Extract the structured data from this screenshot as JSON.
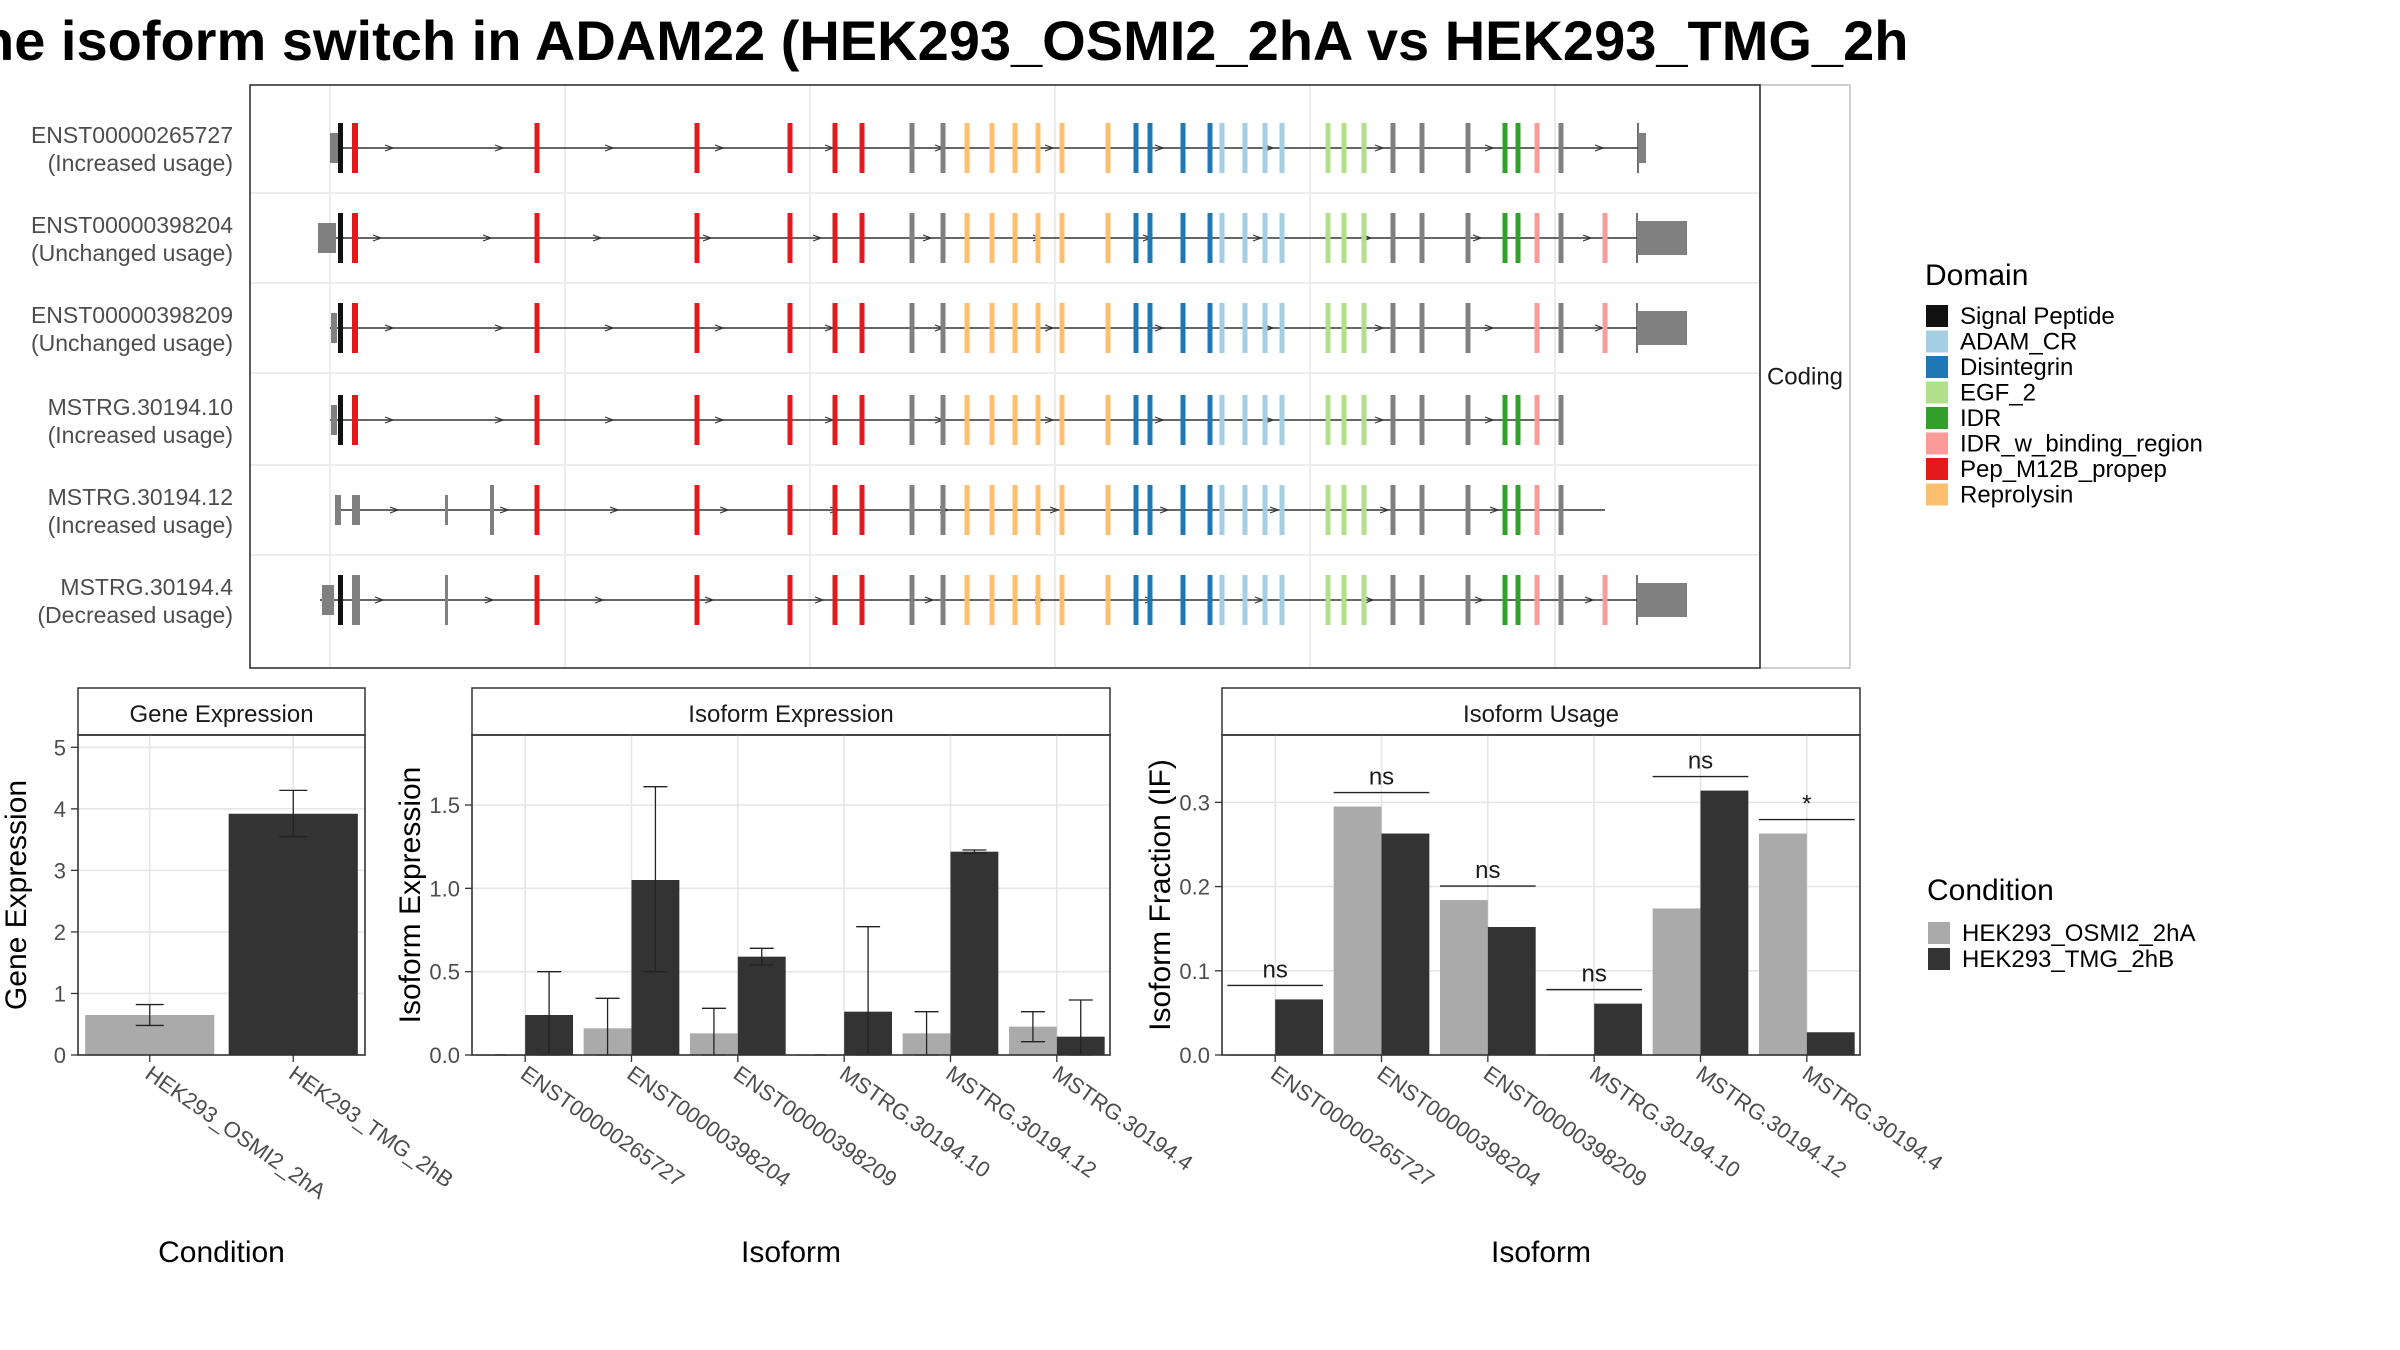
{
  "title": "he isoform switch in ADAM22 (HEK293_OSMI2_2hA vs HEK293_TMG_2h",
  "structure": {
    "facet_label": "Coding",
    "isoforms": [
      {
        "id": "ENST00000265727",
        "usage": "(Increased usage)"
      },
      {
        "id": "ENST00000398204",
        "usage": "(Unchanged usage)"
      },
      {
        "id": "ENST00000398209",
        "usage": "(Unchanged usage)"
      },
      {
        "id": "MSTRG.30194.10",
        "usage": "(Increased usage)"
      },
      {
        "id": "MSTRG.30194.12",
        "usage": "(Increased usage)"
      },
      {
        "id": "MSTRG.30194.4",
        "usage": "(Decreased usage)"
      }
    ]
  },
  "legend_domain": {
    "title": "Domain",
    "items": [
      {
        "label": "Signal Peptide",
        "color": "#111111"
      },
      {
        "label": "ADAM_CR",
        "color": "#a6cee3"
      },
      {
        "label": "Disintegrin",
        "color": "#1f78b4"
      },
      {
        "label": "EGF_2",
        "color": "#b2df8a"
      },
      {
        "label": "IDR",
        "color": "#33a02c"
      },
      {
        "label": "IDR_w_binding_region",
        "color": "#fb9a99"
      },
      {
        "label": "Pep_M12B_propep",
        "color": "#e31a1c"
      },
      {
        "label": "Reprolysin",
        "color": "#fdbf6f"
      }
    ]
  },
  "legend_condition": {
    "title": "Condition",
    "items": [
      {
        "label": "HEK293_OSMI2_2hA",
        "color": "#aaaaaa"
      },
      {
        "label": "HEK293_TMG_2hB",
        "color": "#333333"
      }
    ]
  },
  "chart_data": [
    {
      "type": "bar",
      "title": "Gene Expression",
      "xlabel": "Condition",
      "ylabel": "Gene Expression",
      "ylim": [
        0,
        5.2
      ],
      "yticks": [
        0,
        1,
        2,
        3,
        4,
        5
      ],
      "categories": [
        "HEK293_OSMI2_2hA",
        "HEK293_TMG_2hB"
      ],
      "values": [
        0.65,
        3.92
      ],
      "errors": [
        [
          0.48,
          0.82
        ],
        [
          3.55,
          4.3
        ]
      ],
      "colors": [
        "#aaaaaa",
        "#333333"
      ]
    },
    {
      "type": "bar",
      "title": "Isoform Expression",
      "xlabel": "Isoform",
      "ylabel": "Isoform Expression",
      "ylim": [
        0,
        1.92
      ],
      "yticks": [
        "0.0",
        "0.5",
        "1.0",
        "1.5"
      ],
      "categories": [
        "ENST00000265727",
        "ENST00000398204",
        "ENST00000398209",
        "MSTRG.30194.10",
        "MSTRG.30194.12",
        "MSTRG.30194.4"
      ],
      "series": [
        {
          "name": "HEK293_OSMI2_2hA",
          "values": [
            0.0,
            0.16,
            0.13,
            0.0,
            0.13,
            0.17
          ],
          "errors": [
            [
              0,
              0
            ],
            [
              0.0,
              0.34
            ],
            [
              0.0,
              0.28
            ],
            [
              0,
              0
            ],
            [
              0.0,
              0.26
            ],
            [
              0.08,
              0.26
            ]
          ]
        },
        {
          "name": "HEK293_TMG_2hB",
          "values": [
            0.24,
            1.05,
            0.59,
            0.26,
            1.22,
            0.11
          ],
          "errors": [
            [
              0.0,
              0.5
            ],
            [
              0.5,
              1.61
            ],
            [
              0.54,
              0.64
            ],
            [
              0.0,
              0.77
            ],
            [
              1.21,
              1.23
            ],
            [
              0.0,
              0.33
            ]
          ]
        }
      ]
    },
    {
      "type": "bar",
      "title": "Isoform Usage",
      "xlabel": "Isoform",
      "ylabel": "Isoform Fraction (IF)",
      "ylim": [
        0,
        0.38
      ],
      "yticks": [
        "0.0",
        "0.1",
        "0.2",
        "0.3"
      ],
      "categories": [
        "ENST00000265727",
        "ENST00000398204",
        "ENST00000398209",
        "MSTRG.30194.10",
        "MSTRG.30194.12",
        "MSTRG.30194.4"
      ],
      "series": [
        {
          "name": "HEK293_OSMI2_2hA",
          "values": [
            0.0,
            0.295,
            0.184,
            0.0,
            0.174,
            0.263
          ]
        },
        {
          "name": "HEK293_TMG_2hB",
          "values": [
            0.066,
            0.263,
            0.152,
            0.061,
            0.314,
            0.027
          ]
        }
      ],
      "significance": [
        "ns",
        "ns",
        "ns",
        "ns",
        "ns",
        "*"
      ]
    }
  ]
}
